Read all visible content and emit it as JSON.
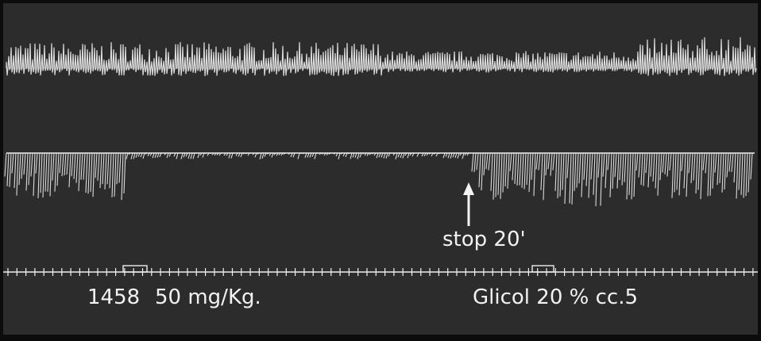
{
  "annotation": "stop 20'",
  "labels": {
    "compound": "1458",
    "dose": "50 mg/Kg.",
    "glycol": "Glicol 20 % cc.5"
  }
}
